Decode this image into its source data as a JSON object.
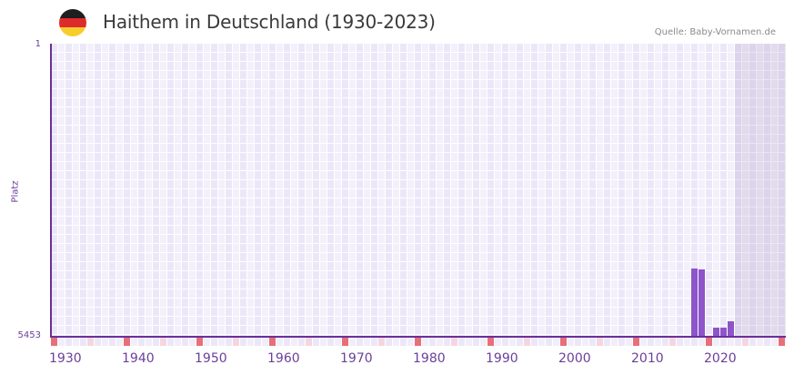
{
  "header": {
    "title": "Haithem in Deutschland (1930-2023)",
    "source": "Quelle: Baby-Vornamen.de",
    "flag_icon": "germany-flag-icon",
    "flag_colors": [
      "#1f1f1f",
      "#dd2b2b",
      "#f7cd2e"
    ]
  },
  "colors": {
    "bar": "#8e54c9",
    "axis": "#6a2f9a",
    "grid_a": "#ece7f8",
    "grid_b": "#f3f0fb",
    "future_shade": "#e3dfee",
    "decade_marker": "#e6707a",
    "half_decade_marker": "#f5d6e0",
    "marker_default": "#f1eefa",
    "tick_text": "#6a3f9a"
  },
  "chart_data": {
    "type": "bar",
    "title": "Haithem in Deutschland (1930-2023)",
    "subtitle": "Quelle: Baby-Vornamen.de",
    "xlabel": "",
    "ylabel": "Platz",
    "y_axis_inverted": true,
    "ylim": [
      5453,
      1
    ],
    "y_ticks": [
      "1",
      "5453"
    ],
    "x_range": [
      1930,
      2030
    ],
    "x_ticks": [
      "1930",
      "1940",
      "1950",
      "1960",
      "1970",
      "1980",
      "1990",
      "2000",
      "2010",
      "2020"
    ],
    "grid": true,
    "legend": null,
    "future_shaded_from": 2024,
    "categories": [
      2018,
      2019,
      2021,
      2022,
      2023
    ],
    "values": [
      4180,
      4200,
      5280,
      5280,
      5165
    ],
    "series": [
      {
        "name": "Platz",
        "points": [
          {
            "year": 2018,
            "rank": 4180
          },
          {
            "year": 2019,
            "rank": 4200
          },
          {
            "year": 2021,
            "rank": 5280
          },
          {
            "year": 2022,
            "rank": 5280
          },
          {
            "year": 2023,
            "rank": 5165
          }
        ]
      }
    ]
  },
  "axis": {
    "y_top_label": "1",
    "y_bottom_label": "5453",
    "y_title": "Platz",
    "x_labels": [
      "1930",
      "1940",
      "1950",
      "1960",
      "1970",
      "1980",
      "1990",
      "2000",
      "2010",
      "2020"
    ]
  }
}
